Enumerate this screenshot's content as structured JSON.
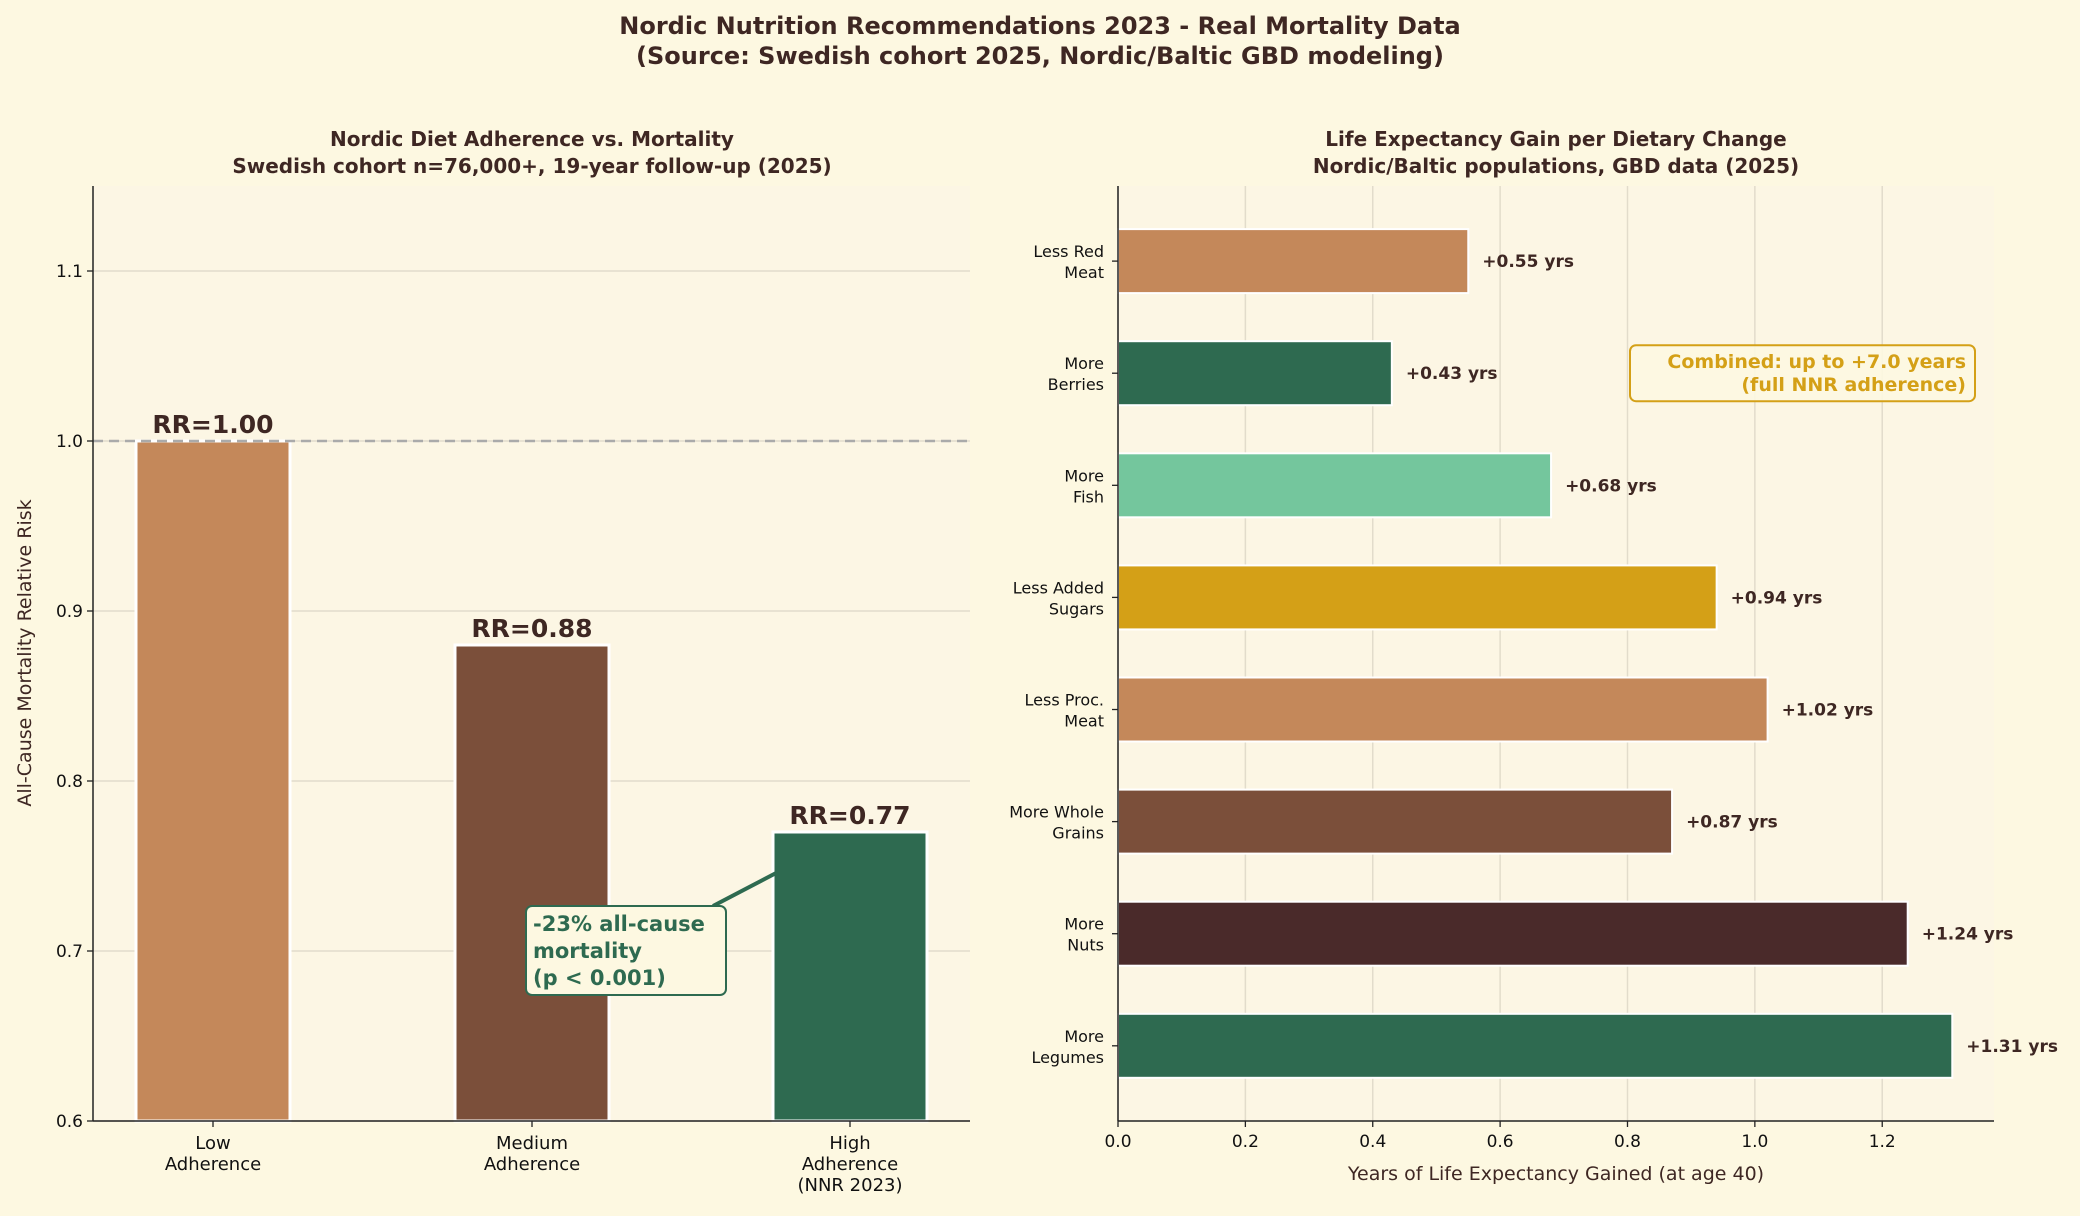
{
  "title": "Nordic Nutrition Recommendations 2023 - Real Mortality Data",
  "subtitle": "(Source: Swedish cohort 2025, Nordic/Baltic GBD modeling)",
  "colors": {
    "background": "#fdf8e1",
    "axes": "#fcf6e4",
    "text": "#3e2723",
    "tan": "#c4885a",
    "brown": "#7b4f3a",
    "green": "#2e6a50",
    "mint": "#74c69d",
    "gold": "#d4a017",
    "dark": "#4a2a2a"
  },
  "chart_data": [
    {
      "type": "bar",
      "title": "Nordic Diet Adherence vs. Mortality",
      "subtitle": "Swedish cohort n=76,000+, 19-year follow-up (2025)",
      "ylabel": "All-Cause Mortality Relative Risk",
      "ylim": [
        0.6,
        1.15
      ],
      "yticks": [
        "0.6",
        "0.7",
        "0.8",
        "0.9",
        "1.0",
        "1.1"
      ],
      "categories": [
        [
          "Low",
          "Adherence"
        ],
        [
          "Medium",
          "Adherence"
        ],
        [
          "High",
          "Adherence",
          "(NNR 2023)"
        ]
      ],
      "values": [
        1.0,
        0.88,
        0.77
      ],
      "data_labels": [
        "RR=1.00",
        "RR=0.88",
        "RR=0.77"
      ],
      "bar_colors": [
        "#c4885a",
        "#7b4f3a",
        "#2e6a50"
      ],
      "reference_line": 1.0,
      "annotation": [
        "-23% all-cause",
        "mortality",
        "(p < 0.001)"
      ],
      "grid": "y"
    },
    {
      "type": "bar",
      "orientation": "horizontal",
      "title": "Life Expectancy Gain per Dietary Change",
      "subtitle": "Nordic/Baltic populations, GBD data (2025)",
      "xlabel": "Years of Life Expectancy Gained (at age 40)",
      "xlim": [
        0,
        1.3755
      ],
      "xticks": [
        "0.0",
        "0.2",
        "0.4",
        "0.6",
        "0.8",
        "1.0",
        "1.2"
      ],
      "categories": [
        [
          "Less Red",
          "Meat"
        ],
        [
          "More",
          "Berries"
        ],
        [
          "More",
          "Fish"
        ],
        [
          "Less Added",
          "Sugars"
        ],
        [
          "Less Proc.",
          "Meat"
        ],
        [
          "More Whole",
          "Grains"
        ],
        [
          "More",
          "Nuts"
        ],
        [
          "More",
          "Legumes"
        ]
      ],
      "values": [
        0.55,
        0.43,
        0.68,
        0.94,
        1.02,
        0.87,
        1.24,
        1.31
      ],
      "data_labels": [
        "+0.55 yrs",
        "+0.43 yrs",
        "+0.68 yrs",
        "+0.94 yrs",
        "+1.02 yrs",
        "+0.87 yrs",
        "+1.24 yrs",
        "+1.31 yrs"
      ],
      "bar_colors": [
        "#c4885a",
        "#2e6a50",
        "#74c69d",
        "#d4a017",
        "#c4885a",
        "#7b4f3a",
        "#4a2a2a",
        "#2e6a50"
      ],
      "annotation": [
        "Combined: up to +7.0 years",
        "(full NNR adherence)"
      ],
      "grid": "x"
    }
  ]
}
